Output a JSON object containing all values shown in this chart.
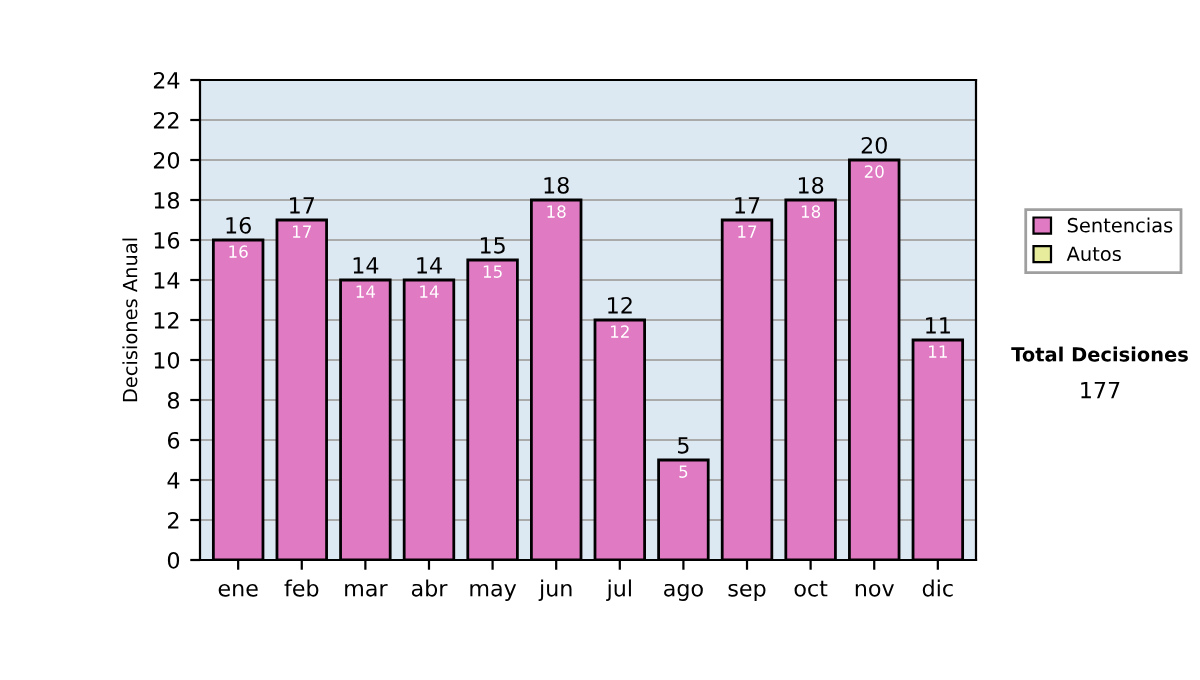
{
  "chart_data": {
    "type": "bar",
    "ylabel": "Decisiones Anual",
    "categories": [
      "ene",
      "feb",
      "mar",
      "abr",
      "may",
      "jun",
      "jul",
      "ago",
      "sep",
      "oct",
      "nov",
      "dic"
    ],
    "stacked": true,
    "series": [
      {
        "name": "Sentencias",
        "color": "#e07bc3",
        "values": [
          16,
          17,
          14,
          14,
          15,
          18,
          12,
          5,
          17,
          18,
          20,
          11
        ]
      },
      {
        "name": "Autos",
        "color": "#e6ec9c",
        "values": [
          null,
          null,
          null,
          null,
          null,
          null,
          null,
          null,
          null,
          null,
          null,
          null
        ]
      }
    ],
    "data_labels": true,
    "totals": [
      "16",
      "17",
      "14",
      "14",
      "15",
      "18",
      "12",
      "5",
      "17",
      "18",
      "20",
      "11"
    ],
    "ylim": [
      0,
      24
    ],
    "yticks": [
      0,
      2,
      4,
      6,
      8,
      10,
      12,
      14,
      16,
      18,
      20,
      22,
      24
    ],
    "grid": "y",
    "legend": "right",
    "annotations": [
      "Total Decisiones",
      "177"
    ]
  }
}
